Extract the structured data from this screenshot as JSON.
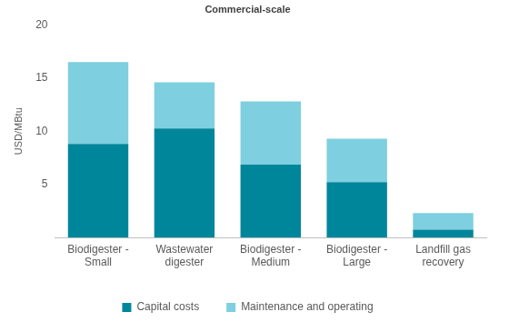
{
  "chart_data": {
    "type": "bar",
    "title": "Commercial-scale",
    "y_label": "USD/MBtu",
    "categories": [
      "Biodigester - Small",
      "Wastewater digester",
      "Biodigester - Medium",
      "Biodigester - Large",
      "Landfill gas recovery"
    ],
    "series": [
      {
        "name": "Capital costs",
        "color": "#00869b",
        "values": [
          8.8,
          10.25,
          6.85,
          5.2,
          0.75
        ]
      },
      {
        "name": "Maintenance and operating",
        "color": "#7ecfdf",
        "values": [
          7.7,
          4.35,
          5.95,
          4.1,
          1.55
        ]
      }
    ],
    "ylim": [
      0,
      20
    ],
    "yticks": [
      5,
      10,
      15,
      20
    ],
    "stacked": true,
    "grid": false,
    "legend": "bottom"
  }
}
